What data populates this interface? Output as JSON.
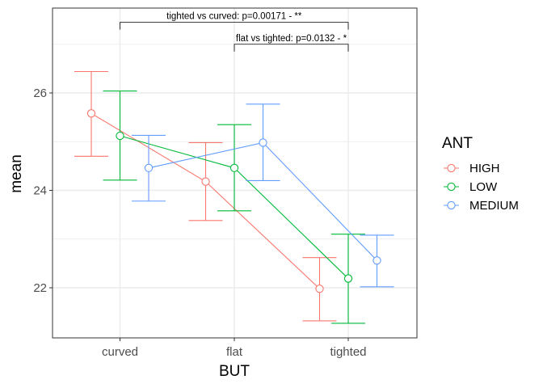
{
  "chart_data": {
    "type": "line",
    "xlabel": "BUT",
    "ylabel": "mean",
    "categories": [
      "curved",
      "flat",
      "tighted"
    ],
    "ylim": [
      21,
      27.8
    ],
    "y_ticks": [
      22,
      24,
      26
    ],
    "grid": true,
    "legend": {
      "title": "ANT",
      "position": "right"
    },
    "series": [
      {
        "name": "HIGH",
        "color": "#F8766D",
        "values": [
          25.58,
          24.18,
          21.98
        ],
        "error_low": [
          24.7,
          23.38,
          21.32
        ],
        "error_high": [
          26.44,
          24.98,
          22.62
        ]
      },
      {
        "name": "LOW",
        "color": "#00BA38",
        "values": [
          25.12,
          24.46,
          22.19
        ],
        "error_low": [
          24.21,
          23.58,
          21.27
        ],
        "error_high": [
          26.04,
          25.35,
          23.1
        ]
      },
      {
        "name": "MEDIUM",
        "color": "#619CFF",
        "values": [
          24.46,
          24.98,
          22.56
        ],
        "error_low": [
          23.78,
          24.2,
          22.02
        ],
        "error_high": [
          25.13,
          25.77,
          23.08
        ]
      }
    ],
    "annotations": [
      {
        "from": "curved",
        "to": "tighted",
        "label": "tighted vs curved: p=0.00171  -  **",
        "y": 27.45
      },
      {
        "from": "flat",
        "to": "tighted",
        "label": "flat vs tighted: p=0.0132  -  *",
        "y": 27.0
      }
    ]
  }
}
